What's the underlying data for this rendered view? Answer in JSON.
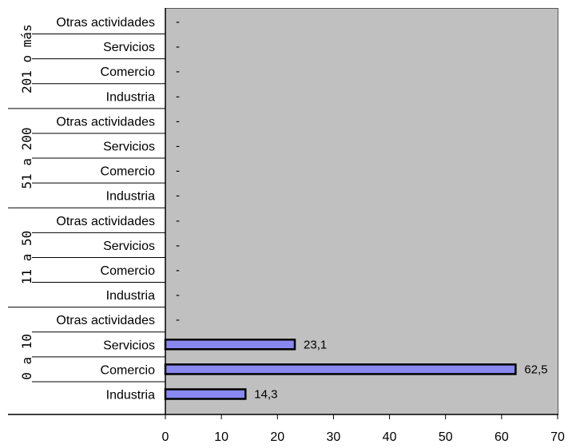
{
  "chart_data": {
    "type": "bar",
    "orientation": "horizontal",
    "title": "",
    "xlabel": "",
    "ylabel": "",
    "xlim": [
      0,
      70
    ],
    "x_ticks": [
      "0",
      "10",
      "20",
      "30",
      "40",
      "50",
      "60",
      "70"
    ],
    "grid": false,
    "legend": "none",
    "groups": [
      {
        "label": "201 o más",
        "rows": [
          {
            "category": "Otras actividades",
            "value": null,
            "label": "-"
          },
          {
            "category": "Servicios",
            "value": null,
            "label": "-"
          },
          {
            "category": "Comercio",
            "value": null,
            "label": "-"
          },
          {
            "category": "Industria",
            "value": null,
            "label": "-"
          }
        ]
      },
      {
        "label": "51 a 200",
        "rows": [
          {
            "category": "Otras actividades",
            "value": null,
            "label": "-"
          },
          {
            "category": "Servicios",
            "value": null,
            "label": "-"
          },
          {
            "category": "Comercio",
            "value": null,
            "label": "-"
          },
          {
            "category": "Industria",
            "value": null,
            "label": "-"
          }
        ]
      },
      {
        "label": "11 a 50",
        "rows": [
          {
            "category": "Otras actividades",
            "value": null,
            "label": "-"
          },
          {
            "category": "Servicios",
            "value": null,
            "label": "-"
          },
          {
            "category": "Comercio",
            "value": null,
            "label": "-"
          },
          {
            "category": "Industria",
            "value": null,
            "label": "-"
          }
        ]
      },
      {
        "label": "0 a 10",
        "rows": [
          {
            "category": "Otras actividades",
            "value": null,
            "label": "-"
          },
          {
            "category": "Servicios",
            "value": 23.1,
            "label": "23,1"
          },
          {
            "category": "Comercio",
            "value": 62.5,
            "label": "62,5"
          },
          {
            "category": "Industria",
            "value": 14.3,
            "label": "14,3"
          }
        ]
      }
    ],
    "colors": {
      "plot_background": "#c0c0c0",
      "bar_fill": "#8888ee",
      "bar_border": "#000000"
    }
  }
}
